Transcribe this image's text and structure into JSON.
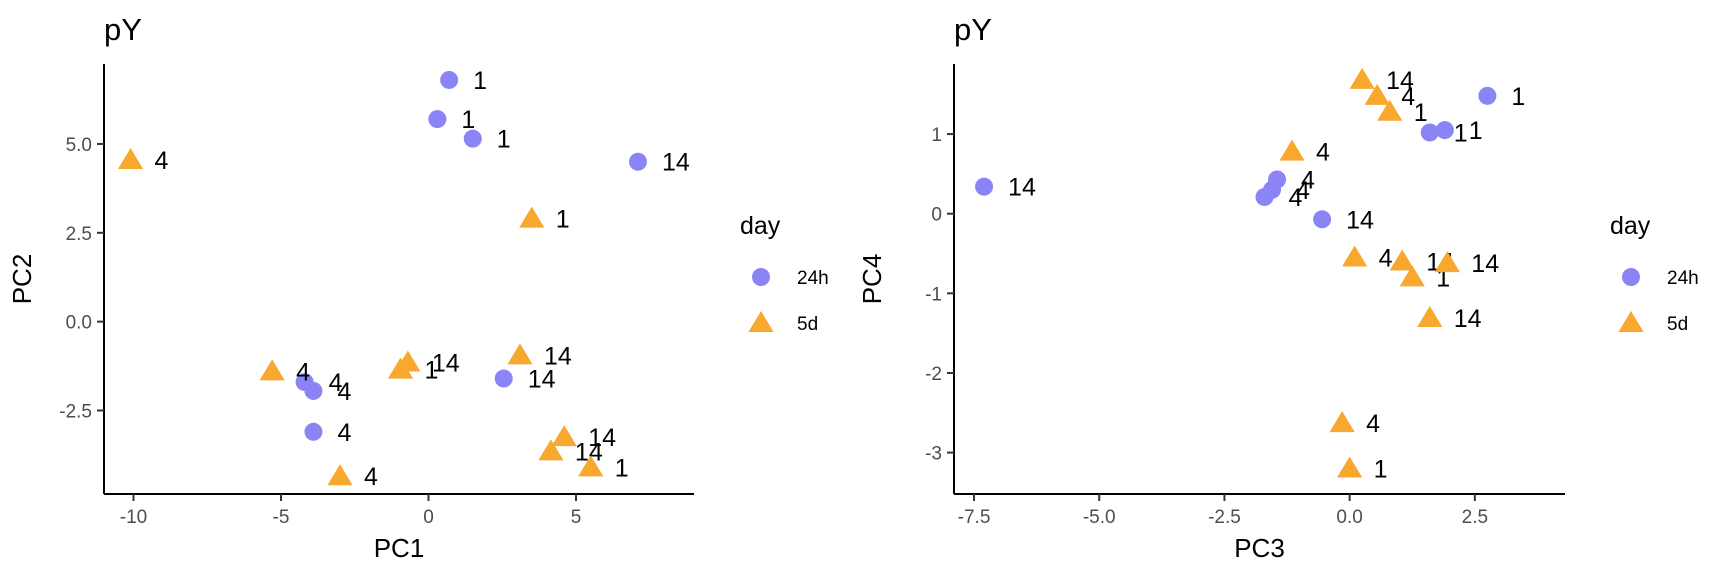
{
  "colors": {
    "24h": "#8a84f6",
    "5d": "#f8a82e"
  },
  "chart_data": [
    {
      "type": "scatter",
      "title": "pY",
      "xlabel": "PC1",
      "ylabel": "PC2",
      "xlim": [
        -11,
        9
      ],
      "ylim": [
        -4.85,
        7.25
      ],
      "xticks": [
        -10,
        -5,
        0,
        5
      ],
      "xtick_labels": [
        "-10",
        "-5",
        "0",
        "5"
      ],
      "yticks": [
        -2.5,
        0,
        2.5,
        5
      ],
      "ytick_labels": [
        "-2.5",
        "0.0",
        "2.5",
        "5.0"
      ],
      "grid": false,
      "legend": {
        "title": "day",
        "position": "right",
        "entries": [
          "24h",
          "5d"
        ]
      },
      "series": [
        {
          "name": "24h",
          "marker": "circle",
          "points": [
            {
              "x": 0.7,
              "y": 6.8,
              "label": "1"
            },
            {
              "x": 0.3,
              "y": 5.7,
              "label": "1"
            },
            {
              "x": 1.5,
              "y": 5.15,
              "label": "1"
            },
            {
              "x": 7.1,
              "y": 4.5,
              "label": "14"
            },
            {
              "x": -4.2,
              "y": -1.7,
              "label": "4"
            },
            {
              "x": -3.9,
              "y": -1.95,
              "label": "4"
            },
            {
              "x": -3.9,
              "y": -3.1,
              "label": "4"
            },
            {
              "x": 2.55,
              "y": -1.6,
              "label": "14"
            }
          ]
        },
        {
          "name": "5d",
          "marker": "triangle",
          "points": [
            {
              "x": -10.1,
              "y": 4.55,
              "label": "4"
            },
            {
              "x": 3.5,
              "y": 2.9,
              "label": "1"
            },
            {
              "x": -5.3,
              "y": -1.4,
              "label": "4"
            },
            {
              "x": -0.7,
              "y": -1.15,
              "label": "14"
            },
            {
              "x": -0.95,
              "y": -1.35,
              "label": "1"
            },
            {
              "x": 3.1,
              "y": -0.95,
              "label": "14"
            },
            {
              "x": 4.6,
              "y": -3.25,
              "label": "14"
            },
            {
              "x": 4.15,
              "y": -3.65,
              "label": "14"
            },
            {
              "x": 5.5,
              "y": -4.1,
              "label": "1"
            },
            {
              "x": -3.0,
              "y": -4.35,
              "label": "4"
            }
          ]
        }
      ]
    },
    {
      "type": "scatter",
      "title": "pY",
      "xlabel": "PC3",
      "ylabel": "PC4",
      "xlim": [
        -7.9,
        4.3
      ],
      "ylim": [
        -3.52,
        1.88
      ],
      "xticks": [
        -7.5,
        -5,
        -2.5,
        0,
        2.5
      ],
      "xtick_labels": [
        "-7.5",
        "-5.0",
        "-2.5",
        "0.0",
        "2.5"
      ],
      "yticks": [
        -3,
        -2,
        -1,
        0,
        1
      ],
      "ytick_labels": [
        "-3",
        "-2",
        "-1",
        "0",
        "1"
      ],
      "grid": false,
      "legend": {
        "title": "day",
        "position": "right",
        "entries": [
          "24h",
          "5d"
        ]
      },
      "series": [
        {
          "name": "24h",
          "marker": "circle",
          "points": [
            {
              "x": 2.75,
              "y": 1.48,
              "label": "1"
            },
            {
              "x": 1.6,
              "y": 1.02,
              "label": "1"
            },
            {
              "x": 1.9,
              "y": 1.05,
              "label": "1"
            },
            {
              "x": -7.3,
              "y": 0.34,
              "label": "14"
            },
            {
              "x": -1.45,
              "y": 0.43,
              "label": "4"
            },
            {
              "x": -1.55,
              "y": 0.3,
              "label": "4"
            },
            {
              "x": -1.7,
              "y": 0.21,
              "label": "4"
            },
            {
              "x": -0.55,
              "y": -0.07,
              "label": "14"
            }
          ]
        },
        {
          "name": "5d",
          "marker": "triangle",
          "points": [
            {
              "x": 0.25,
              "y": 1.68,
              "label": "14"
            },
            {
              "x": 0.55,
              "y": 1.48,
              "label": "4"
            },
            {
              "x": 0.8,
              "y": 1.28,
              "label": "1"
            },
            {
              "x": -1.15,
              "y": 0.78,
              "label": "4"
            },
            {
              "x": 0.1,
              "y": -0.55,
              "label": "4"
            },
            {
              "x": 1.05,
              "y": -0.6,
              "label": "14"
            },
            {
              "x": 1.25,
              "y": -0.8,
              "label": "1"
            },
            {
              "x": 1.95,
              "y": -0.62,
              "label": "14"
            },
            {
              "x": 1.6,
              "y": -1.31,
              "label": "14"
            },
            {
              "x": -0.15,
              "y": -2.63,
              "label": "4"
            },
            {
              "x": 0.0,
              "y": -3.2,
              "label": "1"
            }
          ]
        }
      ]
    }
  ]
}
